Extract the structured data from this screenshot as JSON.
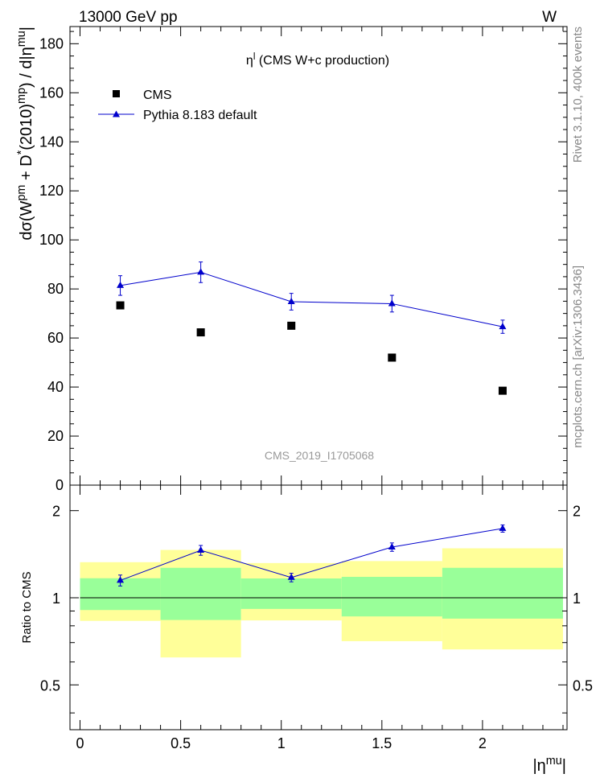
{
  "header": {
    "left": "13000 GeV pp",
    "right": "W"
  },
  "side_labels": {
    "rivet": "Rivet 3.1.10,  400k events",
    "mcplots": "mcplots.cern.ch [arXiv:1306.3436]"
  },
  "chart_data": {
    "type": "scatter",
    "title": "η^l (CMS W+c production)",
    "analysis_label": "CMS_2019_I1705068",
    "xlabel": "|η^mu|",
    "ylabel": "dσ(W^pm + D^*(2010)^mp) / d|η^mu|",
    "xlim": [
      -0.05,
      2.42
    ],
    "ylim": [
      0,
      187
    ],
    "x_ticks": [
      0,
      0.5,
      1,
      1.5,
      2
    ],
    "y_ticks": [
      0,
      20,
      40,
      60,
      80,
      100,
      120,
      140,
      160,
      180
    ],
    "bins": [
      [
        0,
        0.4
      ],
      [
        0.4,
        0.8
      ],
      [
        0.8,
        1.3
      ],
      [
        1.3,
        1.8
      ],
      [
        1.8,
        2.4
      ]
    ],
    "legend_placement": "top-left",
    "series": [
      {
        "name": "CMS",
        "marker": "square",
        "color": "#000000",
        "x": [
          0.2,
          0.6,
          1.05,
          1.55,
          2.1
        ],
        "y": [
          73.3,
          62.3,
          65.0,
          52.0,
          38.5
        ]
      },
      {
        "name": "Pythia 8.183 default",
        "marker": "triangle",
        "color": "#0000cc",
        "x": [
          0.2,
          0.6,
          1.05,
          1.55,
          2.1
        ],
        "y": [
          81.4,
          86.8,
          74.8,
          74.0,
          64.6
        ],
        "yerr": [
          4.0,
          4.2,
          3.4,
          3.4,
          2.7
        ]
      }
    ],
    "ratio": {
      "ylabel": "Ratio to CMS",
      "ylim": [
        0.35,
        2.45
      ],
      "y_ticks": [
        0.5,
        1,
        2
      ],
      "mc_values": [
        1.148,
        1.459,
        1.175,
        1.497,
        1.735
      ],
      "mc_errors": [
        0.05,
        0.057,
        0.04,
        0.05,
        0.05
      ],
      "stat_band": [
        [
          0.907,
          1.168
        ],
        [
          0.838,
          1.269
        ],
        [
          0.915,
          1.166
        ],
        [
          0.862,
          1.181
        ],
        [
          0.847,
          1.269
        ]
      ],
      "total_band": [
        [
          0.832,
          1.327
        ],
        [
          0.622,
          1.463
        ],
        [
          0.835,
          1.318
        ],
        [
          0.708,
          1.339
        ],
        [
          0.663,
          1.482
        ]
      ],
      "band_colors": {
        "stat": "#99ff99",
        "total": "#ffff99"
      }
    }
  }
}
